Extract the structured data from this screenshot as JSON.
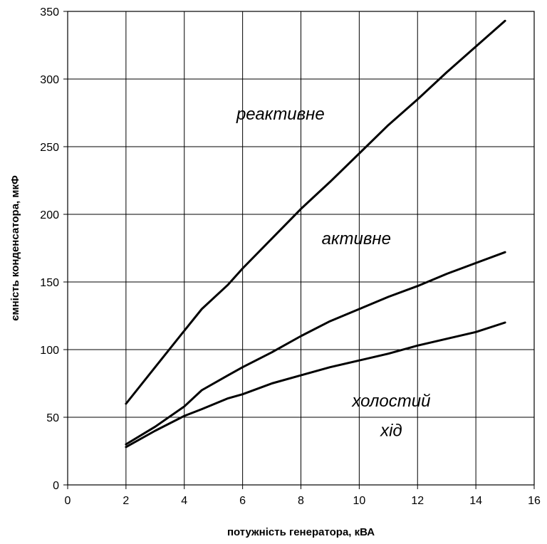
{
  "chart_data": {
    "type": "line",
    "xlabel": "потужність генератора, кВА",
    "ylabel": "ємність конденсатора, мкФ",
    "xlim": [
      0,
      16
    ],
    "ylim": [
      0,
      350
    ],
    "x_ticks": [
      0,
      2,
      4,
      6,
      8,
      10,
      12,
      14,
      16
    ],
    "y_ticks": [
      0,
      50,
      100,
      150,
      200,
      250,
      300,
      350
    ],
    "grid": true,
    "legend": "none",
    "line_color": "#000000",
    "series": [
      {
        "name": "реактивне",
        "x": [
          2,
          3,
          4,
          4.6,
          5.5,
          6,
          7,
          8,
          9,
          10,
          11,
          12,
          13,
          14,
          15
        ],
        "y": [
          60,
          87,
          114,
          130,
          148,
          160,
          182,
          204,
          224,
          245,
          266,
          285,
          305,
          324,
          343
        ]
      },
      {
        "name": "активне",
        "x": [
          2,
          3,
          4,
          4.6,
          5.5,
          6,
          7,
          8,
          9,
          10,
          11,
          12,
          13,
          14,
          15
        ],
        "y": [
          30,
          43,
          58,
          70,
          81,
          87,
          98,
          110,
          121,
          130,
          139,
          147,
          156,
          164,
          172
        ]
      },
      {
        "name": "холостий хід",
        "x": [
          2,
          3,
          4,
          4.6,
          5.5,
          6,
          7,
          8,
          9,
          10,
          11,
          12,
          13,
          14,
          15
        ],
        "y": [
          28,
          40,
          51,
          56,
          64,
          67,
          75,
          81,
          87,
          92,
          97,
          103,
          108,
          113,
          120
        ]
      }
    ],
    "annotations": [
      {
        "text": "реактивне",
        "x": 7.3,
        "y": 270
      },
      {
        "text": "активне",
        "x": 9.9,
        "y": 178
      },
      {
        "text": "холостий",
        "x": 11.1,
        "y": 58
      },
      {
        "text": "хід",
        "x": 11.1,
        "y": 36
      }
    ]
  }
}
